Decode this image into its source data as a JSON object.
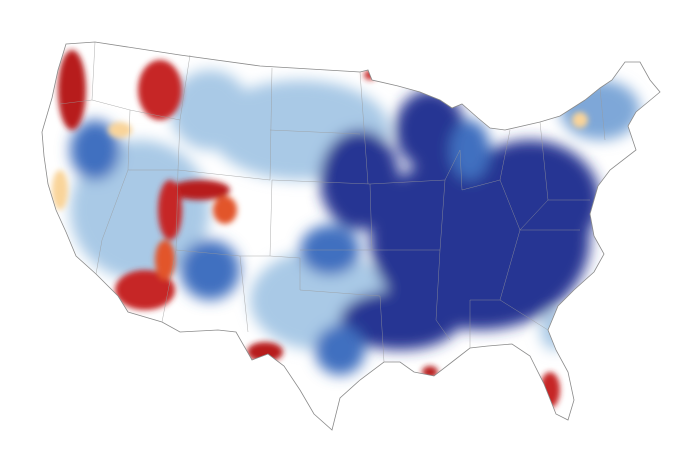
{
  "map": {
    "region": "contiguous-united-states",
    "colors": {
      "strong_wet": "#283593",
      "wet": "#3f6fc0",
      "light_wet": "#a9c9e6",
      "neutral": "#ffffff",
      "light_dry": "#f9d49a",
      "dry": "#e2552b",
      "strong_dry": "#b71c1c",
      "border": "#8a8a8a"
    }
  }
}
